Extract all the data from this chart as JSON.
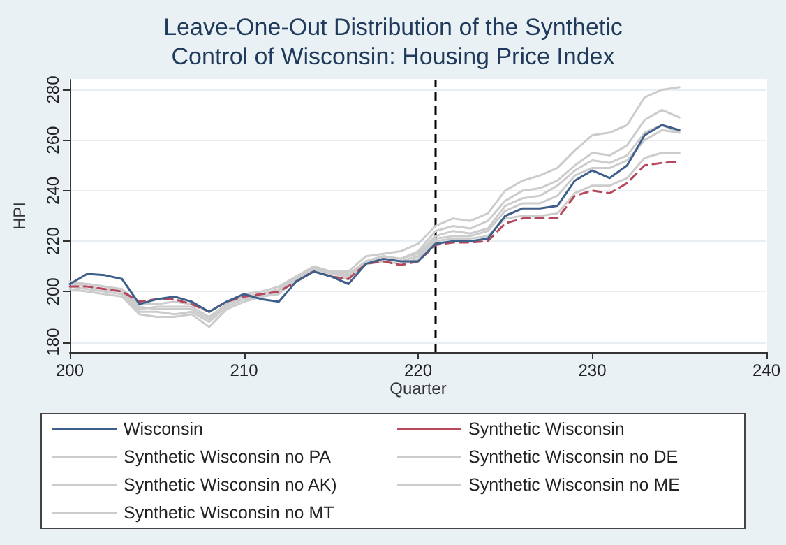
{
  "chart_data": {
    "type": "line",
    "title": "Leave-One-Out Distribution of the Synthetic\nControl of Wisconsin: Housing Price Index",
    "xlabel": "Quarter",
    "ylabel": "HPI",
    "x": [
      200,
      201,
      202,
      203,
      204,
      205,
      206,
      207,
      208,
      209,
      210,
      211,
      212,
      213,
      214,
      215,
      216,
      217,
      218,
      219,
      220,
      221,
      222,
      223,
      224,
      225,
      226,
      227,
      228,
      229,
      230,
      231,
      232,
      233,
      234,
      235
    ],
    "series": [
      {
        "name": "Wisconsin",
        "color": "#3e5f8a",
        "values": [
          203,
          207,
          206.5,
          205,
          195,
          197,
          198,
          196,
          192,
          196,
          199,
          197,
          196,
          204,
          208,
          206,
          203,
          211,
          213,
          212,
          212,
          219,
          220,
          220,
          221,
          230,
          233,
          233,
          234,
          244,
          248,
          245,
          250,
          262,
          266,
          264
        ]
      },
      {
        "name": "Synthetic Wisconsin",
        "color": "#b5485d",
        "line_style": "dashed",
        "values": [
          202,
          202,
          201,
          200,
          196,
          197,
          197,
          195,
          192,
          196,
          198,
          199,
          200,
          204,
          208,
          206,
          205,
          211,
          212,
          210.5,
          212,
          218.5,
          219.5,
          219.5,
          220,
          227,
          229,
          229,
          229,
          238,
          240,
          239,
          243,
          250,
          251,
          251.5
        ]
      },
      {
        "name": "Synthetic Wisconsin no PA",
        "color": "#cccccc",
        "values": [
          201,
          200,
          199,
          198,
          191,
          190,
          190,
          191,
          186,
          193,
          196,
          198,
          199,
          205,
          209,
          208,
          208,
          214,
          215,
          216,
          219,
          226,
          229,
          228,
          231,
          240,
          244,
          246,
          249,
          256,
          262,
          263,
          266,
          277,
          280,
          281
        ]
      },
      {
        "name": "Synthetic Wisconsin no DE",
        "color": "#cccccc",
        "values": [
          202,
          201,
          200,
          199,
          192,
          192,
          191,
          192,
          188,
          194,
          197,
          198,
          200,
          205,
          209,
          207,
          207,
          212,
          214,
          213,
          216,
          224,
          226,
          225,
          228,
          236,
          240,
          241,
          244,
          250,
          255,
          254,
          258,
          268,
          272,
          269
        ]
      },
      {
        "name": "Synthetic Wisconsin no AK)",
        "color": "#cccccc",
        "values": [
          203,
          202,
          201,
          200,
          193,
          194,
          194,
          194,
          190,
          195,
          198,
          199,
          201,
          206,
          210,
          208,
          206,
          212,
          214,
          213,
          215,
          222,
          224,
          223,
          225,
          234,
          237,
          238,
          242,
          248,
          252,
          251,
          254,
          263,
          266,
          263
        ]
      },
      {
        "name": "Synthetic Wisconsin no ME",
        "color": "#cccccc",
        "values": [
          203,
          203,
          202,
          201,
          195,
          195,
          196,
          195,
          192,
          196,
          199,
          200,
          202,
          206,
          209,
          207,
          206,
          211,
          213,
          212,
          214,
          221,
          222,
          222,
          224,
          232,
          235,
          235,
          238,
          246,
          249,
          249,
          252,
          260,
          264,
          263
        ]
      },
      {
        "name": "Synthetic Wisconsin no MT",
        "color": "#cccccc",
        "values": [
          204,
          203,
          202,
          200,
          194,
          193,
          193,
          193,
          189,
          195,
          198,
          198,
          200,
          204,
          208,
          206,
          205,
          211,
          212,
          211,
          213,
          220,
          221,
          221,
          222,
          229,
          230,
          230,
          231,
          239,
          242,
          242,
          245,
          253,
          255,
          255
        ]
      }
    ],
    "xlim": [
      200,
      240
    ],
    "xticks": [
      200,
      210,
      220,
      230,
      240
    ],
    "ylim": [
      176,
      284
    ],
    "yticks": [
      180,
      200,
      220,
      240,
      260,
      280
    ],
    "ref_lines": [
      {
        "axis": "x",
        "value": 221,
        "color": "#000000",
        "line_style": "dashed"
      }
    ],
    "grid": "y",
    "legend": "bottom",
    "line_style": "solid",
    "marker": "none"
  }
}
